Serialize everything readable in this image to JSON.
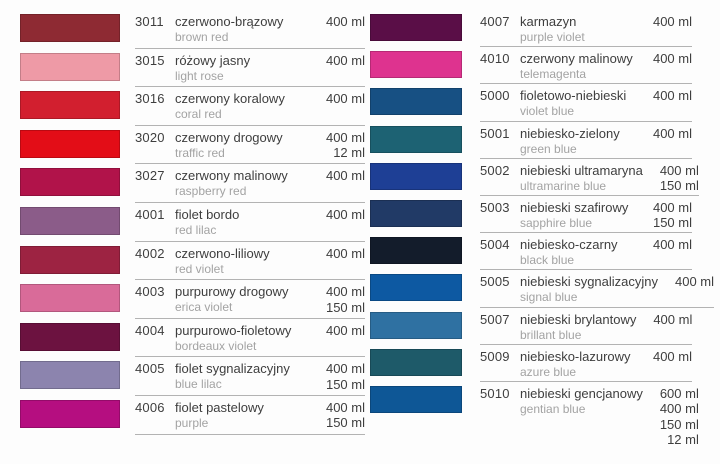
{
  "title": "spray paint color chart",
  "ui_colors": {
    "background": "#fdfdfd",
    "separator": "#b3b3b3",
    "text_primary": "#3e3e3e",
    "text_secondary": "#a3a3a3"
  },
  "columns": [
    {
      "name": "left",
      "rows": [
        {
          "code": "3011",
          "name_pl": "czerwono-brązowy",
          "name_en": "brown red",
          "volumes": [
            "400 ml"
          ],
          "swatch": "#8e2a33"
        },
        {
          "code": "3015",
          "name_pl": "różowy jasny",
          "name_en": "light rose",
          "volumes": [
            "400 ml"
          ],
          "swatch": "#ee9aa6"
        },
        {
          "code": "3016",
          "name_pl": "czerwony koralowy",
          "name_en": "coral red",
          "volumes": [
            "400 ml"
          ],
          "swatch": "#d21f2f"
        },
        {
          "code": "3020",
          "name_pl": "czerwony drogowy",
          "name_en": "traffic red",
          "volumes": [
            "400 ml",
            "12 ml"
          ],
          "swatch": "#e30d17"
        },
        {
          "code": "3027",
          "name_pl": "czerwony malinowy",
          "name_en": "raspberry red",
          "volumes": [
            "400 ml"
          ],
          "swatch": "#b1134a"
        },
        {
          "code": "4001",
          "name_pl": "fiolet bordo",
          "name_en": "red lilac",
          "volumes": [
            "400 ml"
          ],
          "swatch": "#8b5c89"
        },
        {
          "code": "4002",
          "name_pl": "czerwono-liliowy",
          "name_en": "red violet",
          "volumes": [
            "400 ml"
          ],
          "swatch": "#9d2342"
        },
        {
          "code": "4003",
          "name_pl": "purpurowy drogowy",
          "name_en": "erica violet",
          "volumes": [
            "400 ml",
            "150 ml"
          ],
          "swatch": "#d96b99"
        },
        {
          "code": "4004",
          "name_pl": "purpurowo-fioletowy",
          "name_en": "bordeaux violet",
          "volumes": [
            "400 ml"
          ],
          "swatch": "#6c1240"
        },
        {
          "code": "4005",
          "name_pl": "fiolet sygnalizacyjny",
          "name_en": "blue lilac",
          "volumes": [
            "400 ml",
            "150 ml"
          ],
          "swatch": "#8c84ae"
        },
        {
          "code": "4006",
          "name_pl": "fiolet pastelowy",
          "name_en": "purple",
          "volumes": [
            "400 ml",
            "150 ml"
          ],
          "swatch": "#b50e80"
        }
      ]
    },
    {
      "name": "right",
      "rows": [
        {
          "code": "4007",
          "name_pl": "karmazyn",
          "name_en": "purple violet",
          "volumes": [
            "400 ml"
          ],
          "swatch": "#5a0e47"
        },
        {
          "code": "4010",
          "name_pl": "czerwony malinowy",
          "name_en": "telemagenta",
          "volumes": [
            "400 ml"
          ],
          "swatch": "#de338f"
        },
        {
          "code": "5000",
          "name_pl": "fioletowo-niebieski",
          "name_en": "violet blue",
          "volumes": [
            "400 ml"
          ],
          "swatch": "#175083"
        },
        {
          "code": "5001",
          "name_pl": "niebiesko-zielony",
          "name_en": "green blue",
          "volumes": [
            "400 ml"
          ],
          "swatch": "#1d6273"
        },
        {
          "code": "5002",
          "name_pl": "niebieski ultramaryna",
          "name_en": "ultramarine blue",
          "volumes": [
            "400 ml",
            "150 ml"
          ],
          "swatch": "#1e3f95"
        },
        {
          "code": "5003",
          "name_pl": "niebieski szafirowy",
          "name_en": "sapphire blue",
          "volumes": [
            "400 ml",
            "150 ml"
          ],
          "swatch": "#213a66"
        },
        {
          "code": "5004",
          "name_pl": "niebiesko-czarny",
          "name_en": "black blue",
          "volumes": [
            "400 ml"
          ],
          "swatch": "#131c2b"
        },
        {
          "code": "5005",
          "name_pl": "niebieski sygnalizacyjny",
          "name_en": "signal blue",
          "volumes": [
            "400 ml"
          ],
          "swatch": "#0d59a2"
        },
        {
          "code": "5007",
          "name_pl": "niebieski brylantowy",
          "name_en": "brillant blue",
          "volumes": [
            "400 ml"
          ],
          "swatch": "#2f71a2"
        },
        {
          "code": "5009",
          "name_pl": "niebiesko-lazurowy",
          "name_en": "azure blue",
          "volumes": [
            "400 ml"
          ],
          "swatch": "#1e5a69"
        },
        {
          "code": "5010",
          "name_pl": "niebieski gencjanowy",
          "name_en": "gentian blue",
          "volumes": [
            "600 ml",
            "400 ml",
            "150 ml",
            "12 ml"
          ],
          "swatch": "#0e5796"
        }
      ]
    }
  ]
}
